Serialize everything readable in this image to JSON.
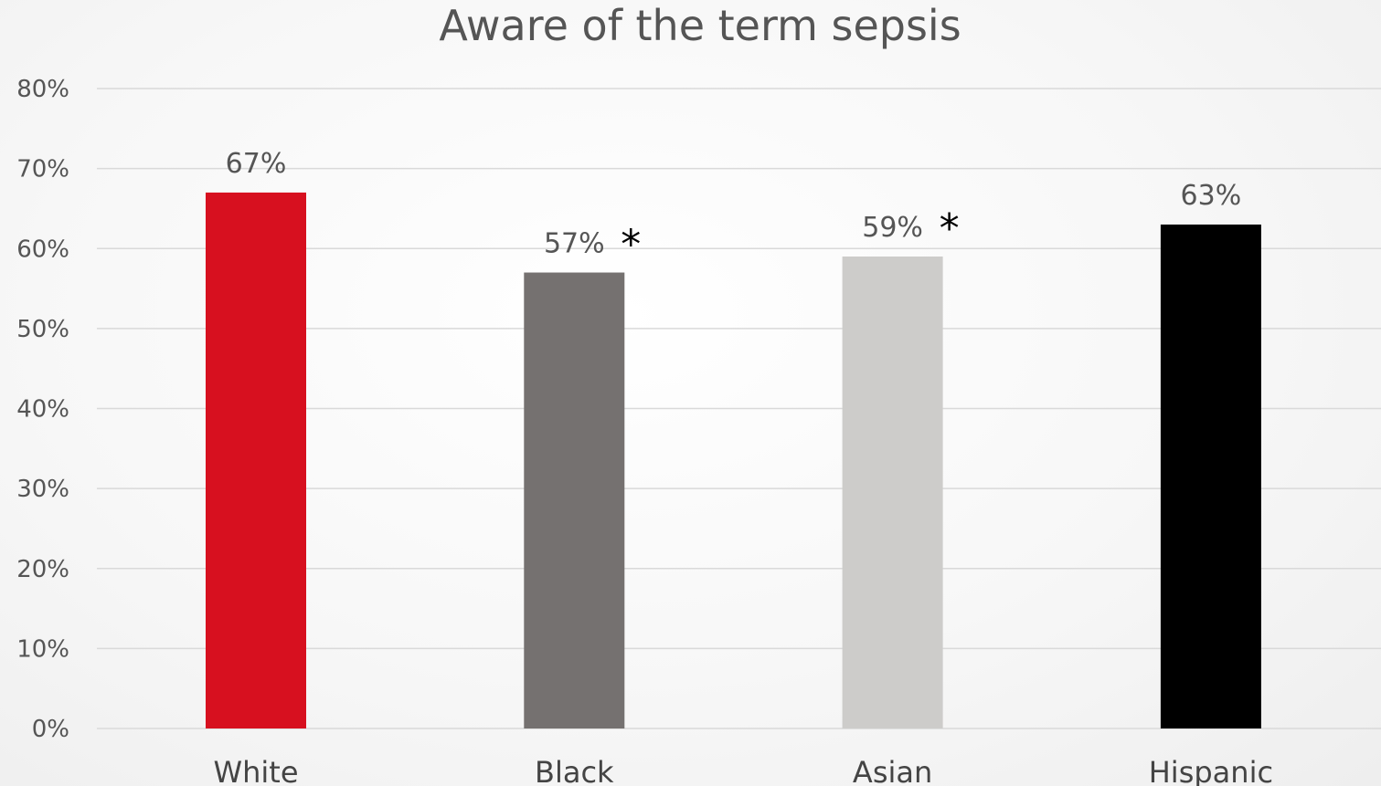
{
  "chart_data": {
    "type": "bar",
    "title": "Aware of the term sepsis",
    "xlabel": "",
    "ylabel": "",
    "ylim": [
      0,
      80
    ],
    "y_ticks": [
      "0%",
      "10%",
      "20%",
      "30%",
      "40%",
      "50%",
      "60%",
      "70%",
      "80%"
    ],
    "grid": true,
    "legend": "none",
    "categories": [
      "White",
      "Black",
      "Asian",
      "Hispanic"
    ],
    "values": [
      67,
      57,
      59,
      63
    ],
    "data_labels": [
      "67%",
      "57%",
      "59%",
      "63%"
    ],
    "significance_marks": [
      "",
      "*",
      "*",
      ""
    ],
    "colors": [
      "#d7101f",
      "#757170",
      "#cdccca",
      "#000000"
    ]
  }
}
